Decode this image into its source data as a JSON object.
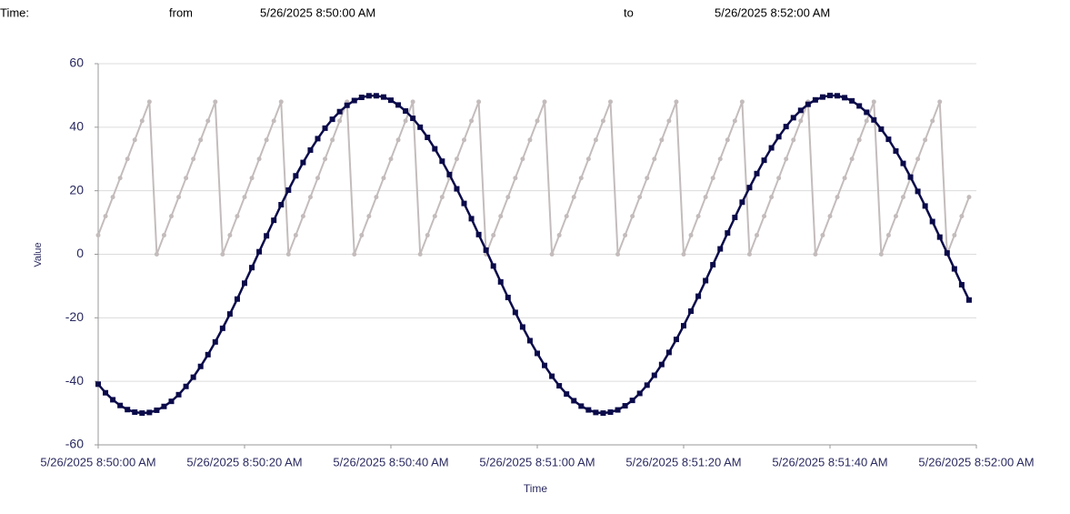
{
  "header": {
    "label": "Time:",
    "from_label": "from",
    "from": "5/26/2025 8:50:00 AM",
    "to_label": "to",
    "to": "5/26/2025 8:52:00 AM"
  },
  "chart_data": {
    "type": "line",
    "x_label": "Time",
    "y_label": "Value",
    "x": [
      0,
      1,
      2,
      3,
      4,
      5,
      6,
      7,
      8,
      9,
      10,
      11,
      12,
      13,
      14,
      15,
      16,
      17,
      18,
      19,
      20,
      21,
      22,
      23,
      24,
      25,
      26,
      27,
      28,
      29,
      30,
      31,
      32,
      33,
      34,
      35,
      36,
      37,
      38,
      39,
      40,
      41,
      42,
      43,
      44,
      45,
      46,
      47,
      48,
      49,
      50,
      51,
      52,
      53,
      54,
      55,
      56,
      57,
      58,
      59,
      60,
      61,
      62,
      63,
      64,
      65,
      66,
      67,
      68,
      69,
      70,
      71,
      72,
      73,
      74,
      75,
      76,
      77,
      78,
      79,
      80,
      81,
      82,
      83,
      84,
      85,
      86,
      87,
      88,
      89,
      90,
      91,
      92,
      93,
      94,
      95,
      96,
      97,
      98,
      99,
      100,
      101,
      102,
      103,
      104,
      105,
      106,
      107,
      108,
      109,
      110,
      111,
      112,
      113,
      114,
      115,
      116,
      117,
      118,
      119
    ],
    "series": [
      {
        "color": "#c4bcbc",
        "marker": "circle",
        "values": [
          6,
          12,
          18,
          24,
          30,
          36,
          42,
          48,
          0,
          6,
          12,
          18,
          24,
          30,
          36,
          42,
          48,
          0,
          6,
          12,
          18,
          24,
          30,
          36,
          42,
          48,
          0,
          6,
          12,
          18,
          24,
          30,
          36,
          42,
          48,
          0,
          6,
          12,
          18,
          24,
          30,
          36,
          42,
          48,
          0,
          6,
          12,
          18,
          24,
          30,
          36,
          42,
          48,
          0,
          6,
          12,
          18,
          24,
          30,
          36,
          42,
          48,
          0,
          6,
          12,
          18,
          24,
          30,
          36,
          42,
          48,
          0,
          6,
          12,
          18,
          24,
          30,
          36,
          42,
          48,
          0,
          6,
          12,
          18,
          24,
          30,
          36,
          42,
          48,
          0,
          6,
          12,
          18,
          24,
          30,
          36,
          42,
          48,
          0,
          6,
          12,
          18,
          24,
          30,
          36,
          42,
          48,
          0,
          6,
          12,
          18,
          24,
          30,
          36,
          42,
          48,
          0,
          6,
          12,
          18
        ]
      },
      {
        "color": "#0a0a4a",
        "marker": "square",
        "values": [
          -40.9,
          -43.6,
          -45.8,
          -47.6,
          -48.9,
          -49.7,
          -50.0,
          -49.8,
          -49.1,
          -47.9,
          -46.3,
          -44.2,
          -41.6,
          -38.7,
          -35.3,
          -31.6,
          -27.6,
          -23.3,
          -18.8,
          -14.1,
          -9.1,
          -4.2,
          0.8,
          5.8,
          10.7,
          15.6,
          20.2,
          24.7,
          28.9,
          32.8,
          36.4,
          39.7,
          42.5,
          44.9,
          46.9,
          48.4,
          49.4,
          49.9,
          49.9,
          49.5,
          48.5,
          47.0,
          45.1,
          42.8,
          40.0,
          36.8,
          33.2,
          29.3,
          25.1,
          20.6,
          16.0,
          11.2,
          6.2,
          1.3,
          -3.7,
          -8.7,
          -13.6,
          -18.3,
          -22.9,
          -27.2,
          -31.2,
          -35.0,
          -38.4,
          -41.4,
          -44.0,
          -46.1,
          -47.8,
          -49.0,
          -49.8,
          -50.0,
          -49.7,
          -49.0,
          -47.7,
          -46.0,
          -43.8,
          -41.2,
          -38.1,
          -34.7,
          -30.9,
          -26.8,
          -22.5,
          -17.9,
          -13.2,
          -8.3,
          -3.3,
          1.7,
          6.7,
          11.6,
          16.4,
          21.0,
          25.4,
          29.6,
          33.5,
          37.0,
          40.2,
          43.0,
          45.3,
          47.2,
          48.6,
          49.5,
          50.0,
          49.9,
          49.3,
          48.3,
          46.7,
          44.7,
          42.3,
          39.4,
          36.2,
          32.5,
          28.6,
          24.3,
          19.8,
          15.2,
          10.3,
          5.4,
          0.4,
          -4.6,
          -9.6,
          -14.4
        ]
      }
    ],
    "xlim": [
      0,
      120
    ],
    "xticks": [
      {
        "value": 0,
        "label": "5/26/2025 8:50:00 AM"
      },
      {
        "value": 20,
        "label": "5/26/2025 8:50:20 AM"
      },
      {
        "value": 40,
        "label": "5/26/2025 8:50:40 AM"
      },
      {
        "value": 60,
        "label": "5/26/2025 8:51:00 AM"
      },
      {
        "value": 80,
        "label": "5/26/2025 8:51:20 AM"
      },
      {
        "value": 100,
        "label": "5/26/2025 8:51:40 AM"
      },
      {
        "value": 120,
        "label": "5/26/2025 8:52:00 AM"
      }
    ],
    "ylim": [
      -60,
      60
    ],
    "yticks": [
      -60,
      -40,
      -20,
      0,
      20,
      40,
      60
    ],
    "grid": true
  }
}
